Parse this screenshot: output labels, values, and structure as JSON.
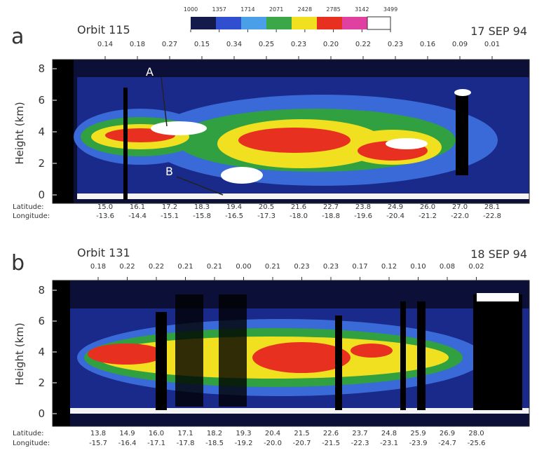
{
  "colorbar": {
    "ticks": [
      1000,
      1357,
      1714,
      2071,
      2428,
      2785,
      3142,
      3499
    ]
  },
  "axis_labels": {
    "y": "Height (km)",
    "latitude": "Latitude:",
    "longitude": "Longitude:"
  },
  "panels": [
    {
      "letter": "a",
      "orbit": "Orbit 115",
      "date": "17 SEP 94",
      "top_values": [
        "0.14",
        "0.18",
        "0.27",
        "0.15",
        "0.34",
        "0.25",
        "0.23",
        "0.20",
        "0.22",
        "0.23",
        "0.16",
        "0.09",
        "0.01"
      ],
      "latitudes": [
        "15.0",
        "16.1",
        "17.2",
        "18.3",
        "19.4",
        "20.5",
        "21.6",
        "22.7",
        "23.8",
        "24.9",
        "26.0",
        "27.0",
        "28.1"
      ],
      "longitudes": [
        "-13.6",
        "-14.4",
        "-15.1",
        "-15.8",
        "-16.5",
        "-17.3",
        "-18.0",
        "-18.8",
        "-19.6",
        "-20.4",
        "-21.2",
        "-22.0",
        "-22.8"
      ],
      "yticks": [
        0,
        2,
        4,
        6,
        8
      ],
      "annotations": [
        "A",
        "B"
      ]
    },
    {
      "letter": "b",
      "orbit": "Orbit 131",
      "date": "18 SEP 94",
      "top_values": [
        "0.18",
        "0.22",
        "0.22",
        "0.21",
        "0.21",
        "0.00",
        "0.21",
        "0.23",
        "0.23",
        "0.17",
        "0.12",
        "0.10",
        "0.08",
        "0.02"
      ],
      "latitudes": [
        "13.8",
        "14.9",
        "16.0",
        "17.1",
        "18.2",
        "19.3",
        "20.4",
        "21.5",
        "22.6",
        "23.7",
        "24.8",
        "25.9",
        "26.9",
        "28.0"
      ],
      "longitudes": [
        "-15.7",
        "-16.4",
        "-17.1",
        "-17.8",
        "-18.5",
        "-19.2",
        "-20.0",
        "-20.7",
        "-21.5",
        "-22.3",
        "-23.1",
        "-23.9",
        "-24.7",
        "-25.6"
      ],
      "yticks": [
        0,
        2,
        4,
        6,
        8
      ]
    }
  ]
}
